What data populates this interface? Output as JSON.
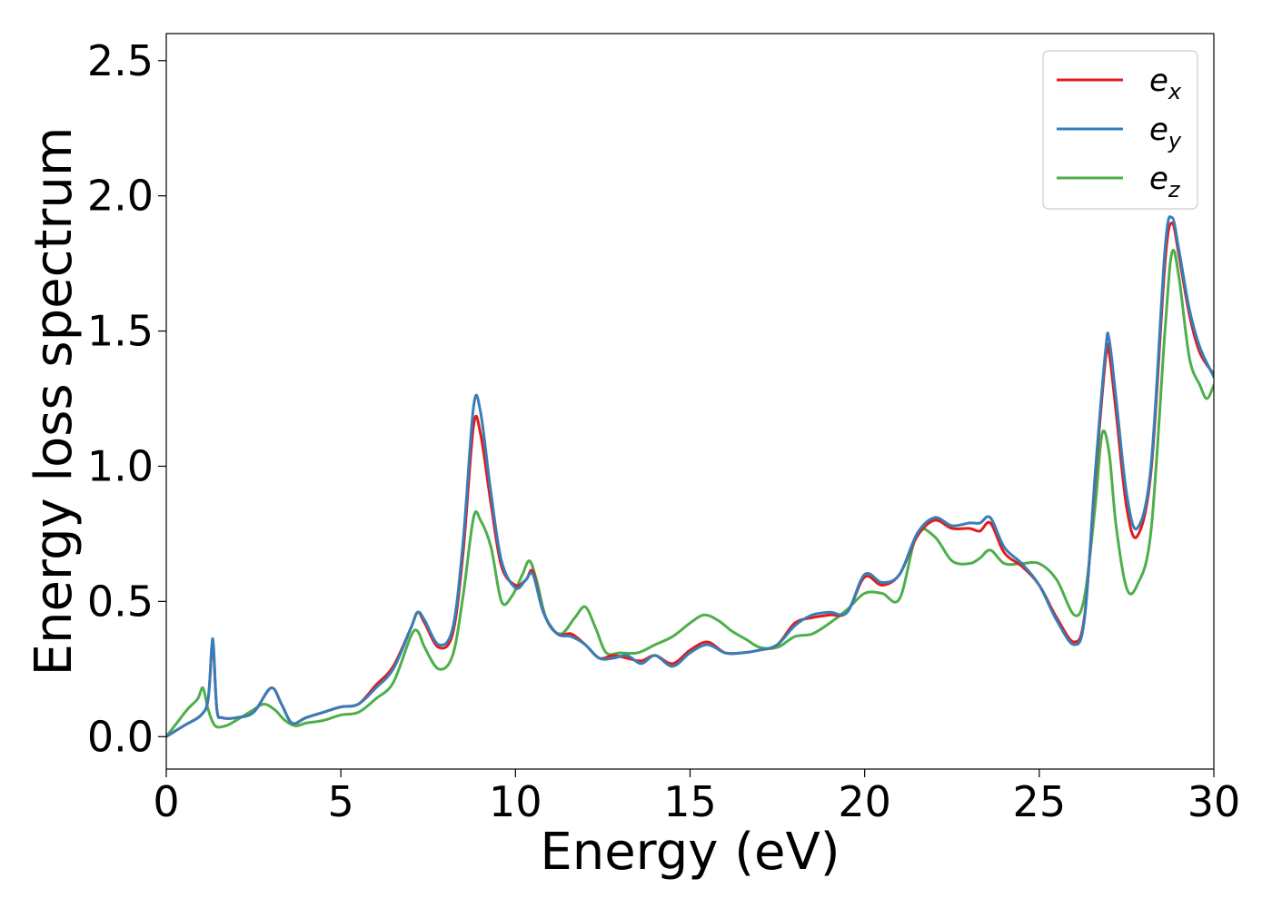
{
  "chart_data": {
    "type": "line",
    "title": "",
    "xlabel": "Energy (eV)",
    "ylabel": "Energy loss spectrum",
    "xlim": [
      0,
      30
    ],
    "ylim": [
      -0.12,
      2.6
    ],
    "xticks": [
      0,
      5,
      10,
      15,
      20,
      25,
      30
    ],
    "xtick_labels": [
      "0",
      "5",
      "10",
      "15",
      "20",
      "25",
      "30"
    ],
    "yticks": [
      0.0,
      0.5,
      1.0,
      1.5,
      2.0,
      2.5
    ],
    "ytick_labels": [
      "0.0",
      "0.5",
      "1.0",
      "1.5",
      "2.0",
      "2.5"
    ],
    "grid": false,
    "legend_position": "top-right",
    "series": [
      {
        "name": "e",
        "name_sub": "x",
        "color": "#e41a1c",
        "x": [
          0,
          0.5,
          1.0,
          1.2,
          1.3,
          1.35,
          1.45,
          1.6,
          2.0,
          2.5,
          3.0,
          3.3,
          3.6,
          4.0,
          4.5,
          5.0,
          5.5,
          6.0,
          6.5,
          7.0,
          7.2,
          7.4,
          7.8,
          8.2,
          8.5,
          8.8,
          9.0,
          9.3,
          9.6,
          10.0,
          10.3,
          10.5,
          10.8,
          11.2,
          11.6,
          12.0,
          12.4,
          12.8,
          13.2,
          13.6,
          14.0,
          14.5,
          15.0,
          15.5,
          16.0,
          16.5,
          17.0,
          17.5,
          18.0,
          18.5,
          19.0,
          19.5,
          20.0,
          20.5,
          21.0,
          21.5,
          22.0,
          22.5,
          23.0,
          23.3,
          23.6,
          24.0,
          24.5,
          25.0,
          25.5,
          26.0,
          26.3,
          26.6,
          26.9,
          27.0,
          27.2,
          27.5,
          27.8,
          28.2,
          28.6,
          28.8,
          29.0,
          29.3,
          29.6,
          30.0
        ],
        "y": [
          0,
          0.04,
          0.08,
          0.14,
          0.32,
          0.33,
          0.1,
          0.07,
          0.07,
          0.09,
          0.18,
          0.12,
          0.05,
          0.07,
          0.09,
          0.11,
          0.12,
          0.19,
          0.26,
          0.4,
          0.46,
          0.42,
          0.33,
          0.38,
          0.68,
          1.15,
          1.12,
          0.86,
          0.63,
          0.56,
          0.58,
          0.61,
          0.46,
          0.38,
          0.38,
          0.34,
          0.29,
          0.3,
          0.29,
          0.28,
          0.3,
          0.27,
          0.32,
          0.35,
          0.31,
          0.31,
          0.32,
          0.34,
          0.42,
          0.44,
          0.45,
          0.46,
          0.59,
          0.56,
          0.6,
          0.74,
          0.8,
          0.77,
          0.77,
          0.76,
          0.79,
          0.68,
          0.63,
          0.56,
          0.44,
          0.35,
          0.45,
          0.95,
          1.4,
          1.42,
          1.2,
          0.85,
          0.74,
          0.98,
          1.75,
          1.9,
          1.78,
          1.56,
          1.42,
          1.34
        ]
      },
      {
        "name": "e",
        "name_sub": "y",
        "color": "#377eb8",
        "x": [
          0,
          0.5,
          1.0,
          1.2,
          1.3,
          1.35,
          1.45,
          1.6,
          2.0,
          2.5,
          3.0,
          3.3,
          3.6,
          4.0,
          4.5,
          5.0,
          5.5,
          6.0,
          6.5,
          7.0,
          7.2,
          7.4,
          7.8,
          8.2,
          8.5,
          8.8,
          9.0,
          9.3,
          9.6,
          10.0,
          10.3,
          10.5,
          10.8,
          11.2,
          11.6,
          12.0,
          12.4,
          12.8,
          13.2,
          13.6,
          14.0,
          14.5,
          15.0,
          15.5,
          16.0,
          16.5,
          17.0,
          17.5,
          18.0,
          18.5,
          19.0,
          19.5,
          20.0,
          20.5,
          21.0,
          21.5,
          22.0,
          22.5,
          23.0,
          23.3,
          23.6,
          24.0,
          24.5,
          25.0,
          25.5,
          26.0,
          26.3,
          26.6,
          26.9,
          27.0,
          27.2,
          27.5,
          27.8,
          28.2,
          28.6,
          28.8,
          29.0,
          29.3,
          29.6,
          30.0
        ],
        "y": [
          0,
          0.04,
          0.08,
          0.14,
          0.33,
          0.34,
          0.1,
          0.07,
          0.07,
          0.09,
          0.18,
          0.12,
          0.05,
          0.07,
          0.09,
          0.11,
          0.12,
          0.18,
          0.25,
          0.4,
          0.46,
          0.43,
          0.34,
          0.4,
          0.72,
          1.22,
          1.2,
          0.9,
          0.65,
          0.55,
          0.58,
          0.6,
          0.46,
          0.38,
          0.37,
          0.34,
          0.29,
          0.29,
          0.3,
          0.27,
          0.3,
          0.26,
          0.31,
          0.34,
          0.31,
          0.31,
          0.32,
          0.34,
          0.41,
          0.45,
          0.46,
          0.46,
          0.6,
          0.57,
          0.6,
          0.75,
          0.81,
          0.78,
          0.79,
          0.79,
          0.81,
          0.7,
          0.64,
          0.56,
          0.43,
          0.34,
          0.44,
          0.97,
          1.43,
          1.47,
          1.25,
          0.9,
          0.77,
          1.0,
          1.8,
          1.92,
          1.8,
          1.58,
          1.44,
          1.33
        ]
      },
      {
        "name": "e",
        "name_sub": "z",
        "color": "#4daf4a",
        "x": [
          0,
          0.3,
          0.6,
          0.9,
          1.05,
          1.2,
          1.4,
          1.7,
          2.0,
          2.5,
          2.8,
          3.1,
          3.4,
          3.7,
          4.0,
          4.5,
          5.0,
          5.5,
          6.0,
          6.5,
          7.0,
          7.2,
          7.4,
          7.8,
          8.2,
          8.5,
          8.8,
          9.0,
          9.3,
          9.6,
          9.9,
          10.2,
          10.4,
          10.6,
          10.9,
          11.3,
          11.7,
          12.0,
          12.3,
          12.6,
          13.0,
          13.5,
          14.0,
          14.5,
          15.0,
          15.4,
          15.8,
          16.2,
          16.6,
          17.0,
          17.5,
          18.0,
          18.5,
          19.0,
          19.5,
          20.0,
          20.5,
          21.0,
          21.5,
          22.0,
          22.5,
          23.0,
          23.3,
          23.6,
          24.0,
          24.5,
          25.0,
          25.5,
          26.0,
          26.3,
          26.6,
          26.8,
          27.0,
          27.2,
          27.5,
          27.8,
          28.2,
          28.6,
          28.8,
          29.0,
          29.3,
          29.6,
          29.8,
          30.0
        ],
        "y": [
          0,
          0.05,
          0.1,
          0.14,
          0.18,
          0.1,
          0.04,
          0.04,
          0.06,
          0.1,
          0.12,
          0.1,
          0.06,
          0.04,
          0.05,
          0.06,
          0.08,
          0.09,
          0.14,
          0.2,
          0.37,
          0.39,
          0.33,
          0.25,
          0.3,
          0.52,
          0.81,
          0.8,
          0.7,
          0.5,
          0.52,
          0.6,
          0.65,
          0.58,
          0.43,
          0.38,
          0.44,
          0.48,
          0.4,
          0.31,
          0.31,
          0.31,
          0.34,
          0.37,
          0.42,
          0.45,
          0.43,
          0.39,
          0.36,
          0.33,
          0.33,
          0.37,
          0.38,
          0.42,
          0.47,
          0.53,
          0.53,
          0.51,
          0.75,
          0.74,
          0.65,
          0.64,
          0.66,
          0.69,
          0.64,
          0.64,
          0.64,
          0.58,
          0.45,
          0.52,
          0.85,
          1.12,
          1.05,
          0.78,
          0.55,
          0.56,
          0.76,
          1.5,
          1.79,
          1.7,
          1.4,
          1.3,
          1.25,
          1.3
        ]
      }
    ]
  }
}
